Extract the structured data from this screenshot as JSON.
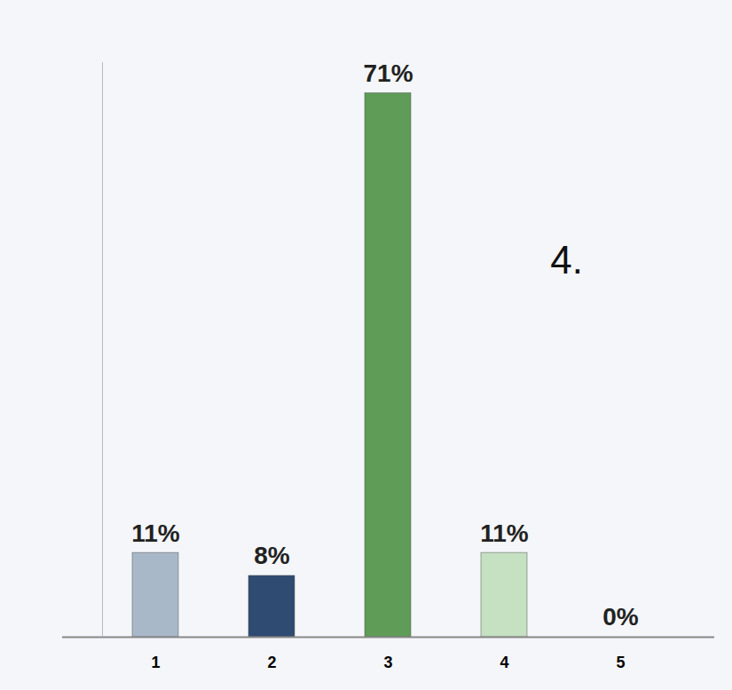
{
  "chart_data": {
    "type": "bar",
    "categories": [
      "1",
      "2",
      "3",
      "4",
      "5"
    ],
    "values": [
      11,
      8,
      71,
      11,
      0
    ],
    "value_labels": [
      "11%",
      "8%",
      "71%",
      "11%",
      "0%"
    ],
    "colors": [
      "#a9b8c8",
      "#2f4b72",
      "#5e9c58",
      "#c6e0c2",
      "#777777"
    ],
    "ylim": [
      0,
      75
    ],
    "data_labels": true,
    "tick_labels": "x",
    "grid": false,
    "annotations": [
      {
        "text": "4.",
        "category": "4"
      }
    ]
  }
}
